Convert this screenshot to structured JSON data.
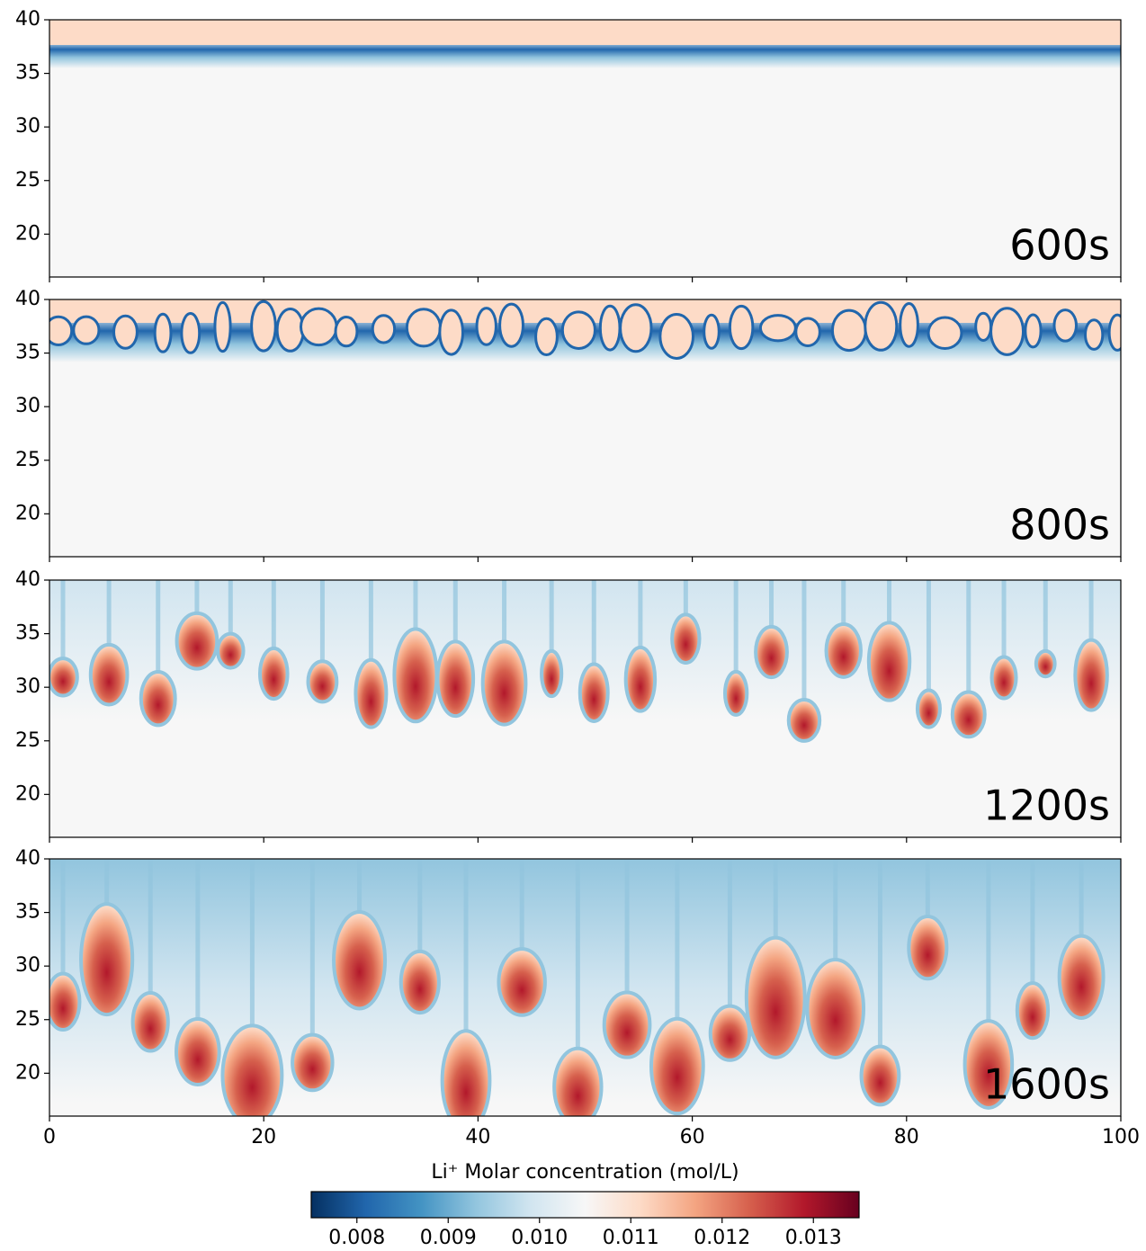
{
  "chart_data": [
    {
      "type": "heatmap",
      "annotation": "600s",
      "xlim": [
        0,
        100
      ],
      "xticks": [
        0,
        20,
        40,
        60,
        80,
        100
      ],
      "ylim": [
        16,
        40
      ],
      "yticks": [
        20,
        25,
        30,
        35,
        40
      ]
    },
    {
      "type": "heatmap",
      "annotation": "800s",
      "xlim": [
        0,
        100
      ],
      "xticks": [
        0,
        20,
        40,
        60,
        80,
        100
      ],
      "ylim": [
        16,
        40
      ],
      "yticks": [
        20,
        25,
        30,
        35,
        40
      ]
    },
    {
      "type": "heatmap",
      "annotation": "1200s",
      "xlim": [
        0,
        100
      ],
      "xticks": [
        0,
        20,
        40,
        60,
        80,
        100
      ],
      "ylim": [
        16,
        40
      ],
      "yticks": [
        20,
        25,
        30,
        35,
        40
      ]
    },
    {
      "type": "heatmap",
      "annotation": "1600s",
      "xlim": [
        0,
        100
      ],
      "xticks": [
        0,
        20,
        40,
        60,
        80,
        100
      ],
      "ylim": [
        16,
        40
      ],
      "yticks": [
        20,
        25,
        30,
        35,
        40
      ]
    },
    {
      "type": "colorbar",
      "label": "Li⁺  Molar concentration (mol/L)",
      "lim": [
        0.0075,
        0.0135
      ],
      "ticks": [
        0.008,
        0.009,
        {
          "value": 0.01,
          "label": "0.010"
        },
        0.011,
        0.012,
        0.013
      ],
      "colormap": [
        "#053061",
        "#2166ac",
        "#4393c3",
        "#92c5de",
        "#d1e5f0",
        "#f7f7f7",
        "#fddbc7",
        "#f4a582",
        "#d6604d",
        "#b2182b",
        "#67001f"
      ]
    }
  ]
}
